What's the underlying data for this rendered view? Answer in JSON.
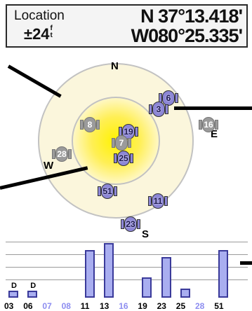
{
  "header": {
    "location_label": "Location",
    "accuracy": "±24",
    "accuracy_unit_top": "f",
    "accuracy_unit_bottom": "t",
    "latitude": "N  37°13.418'",
    "longitude": "W080°25.335'"
  },
  "sky": {
    "north": "N",
    "east": "E",
    "south": "S",
    "west": "W",
    "satellites": [
      {
        "prn": "6",
        "state": "active"
      },
      {
        "prn": "3",
        "state": "active"
      },
      {
        "prn": "8",
        "state": "inactive"
      },
      {
        "prn": "16",
        "state": "inactive"
      },
      {
        "prn": "19",
        "state": "active"
      },
      {
        "prn": "7",
        "state": "inactive"
      },
      {
        "prn": "28",
        "state": "inactive"
      },
      {
        "prn": "25",
        "state": "active"
      },
      {
        "prn": "51",
        "state": "active"
      },
      {
        "prn": "11",
        "state": "active"
      },
      {
        "prn": "23",
        "state": "active"
      }
    ]
  },
  "signal_bars": {
    "d_marks": [
      "D",
      "D"
    ],
    "labels": [
      "03",
      "06",
      "07",
      "08",
      "11",
      "13",
      "16",
      "19",
      "23",
      "25",
      "28",
      "51"
    ],
    "strength": [
      0.12,
      0.12,
      0.0,
      0.0,
      0.85,
      0.97,
      0.0,
      0.36,
      0.72,
      0.16,
      0.0,
      0.85
    ],
    "colors": {
      "active": "#000000",
      "inactive": "#8d8df0"
    },
    "label_active": [
      true,
      true,
      false,
      false,
      true,
      true,
      false,
      true,
      true,
      true,
      false,
      true
    ]
  }
}
